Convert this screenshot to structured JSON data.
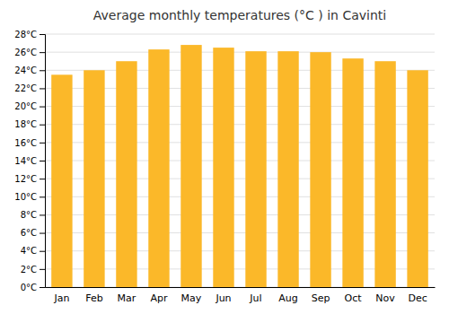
{
  "chart_data": {
    "type": "bar",
    "title": "Average monthly temperatures (°C ) in Cavinti",
    "categories": [
      "Jan",
      "Feb",
      "Mar",
      "Apr",
      "May",
      "Jun",
      "Jul",
      "Aug",
      "Sep",
      "Oct",
      "Nov",
      "Dec"
    ],
    "values": [
      23.5,
      24.0,
      25.0,
      26.3,
      26.8,
      26.5,
      26.1,
      26.1,
      26.0,
      25.3,
      25.0,
      24.0
    ],
    "color": "#FBB829",
    "ylim": [
      0,
      28
    ],
    "yticks": [
      {
        "value": 0,
        "label": "0°C"
      },
      {
        "value": 2,
        "label": "2°C"
      },
      {
        "value": 4,
        "label": "4°C"
      },
      {
        "value": 6,
        "label": "6°C"
      },
      {
        "value": 8,
        "label": "8°C"
      },
      {
        "value": 10,
        "label": "10°C"
      },
      {
        "value": 12,
        "label": "12°C"
      },
      {
        "value": 14,
        "label": "14°C"
      },
      {
        "value": 16,
        "label": "16°C"
      },
      {
        "value": 18,
        "label": "18°C"
      },
      {
        "value": 20,
        "label": "20°C"
      },
      {
        "value": 22,
        "label": "22°C"
      },
      {
        "value": 24,
        "label": "24°C"
      },
      {
        "value": 26,
        "label": "26°C"
      },
      {
        "value": 28,
        "label": "28°C"
      }
    ],
    "grid": true
  }
}
